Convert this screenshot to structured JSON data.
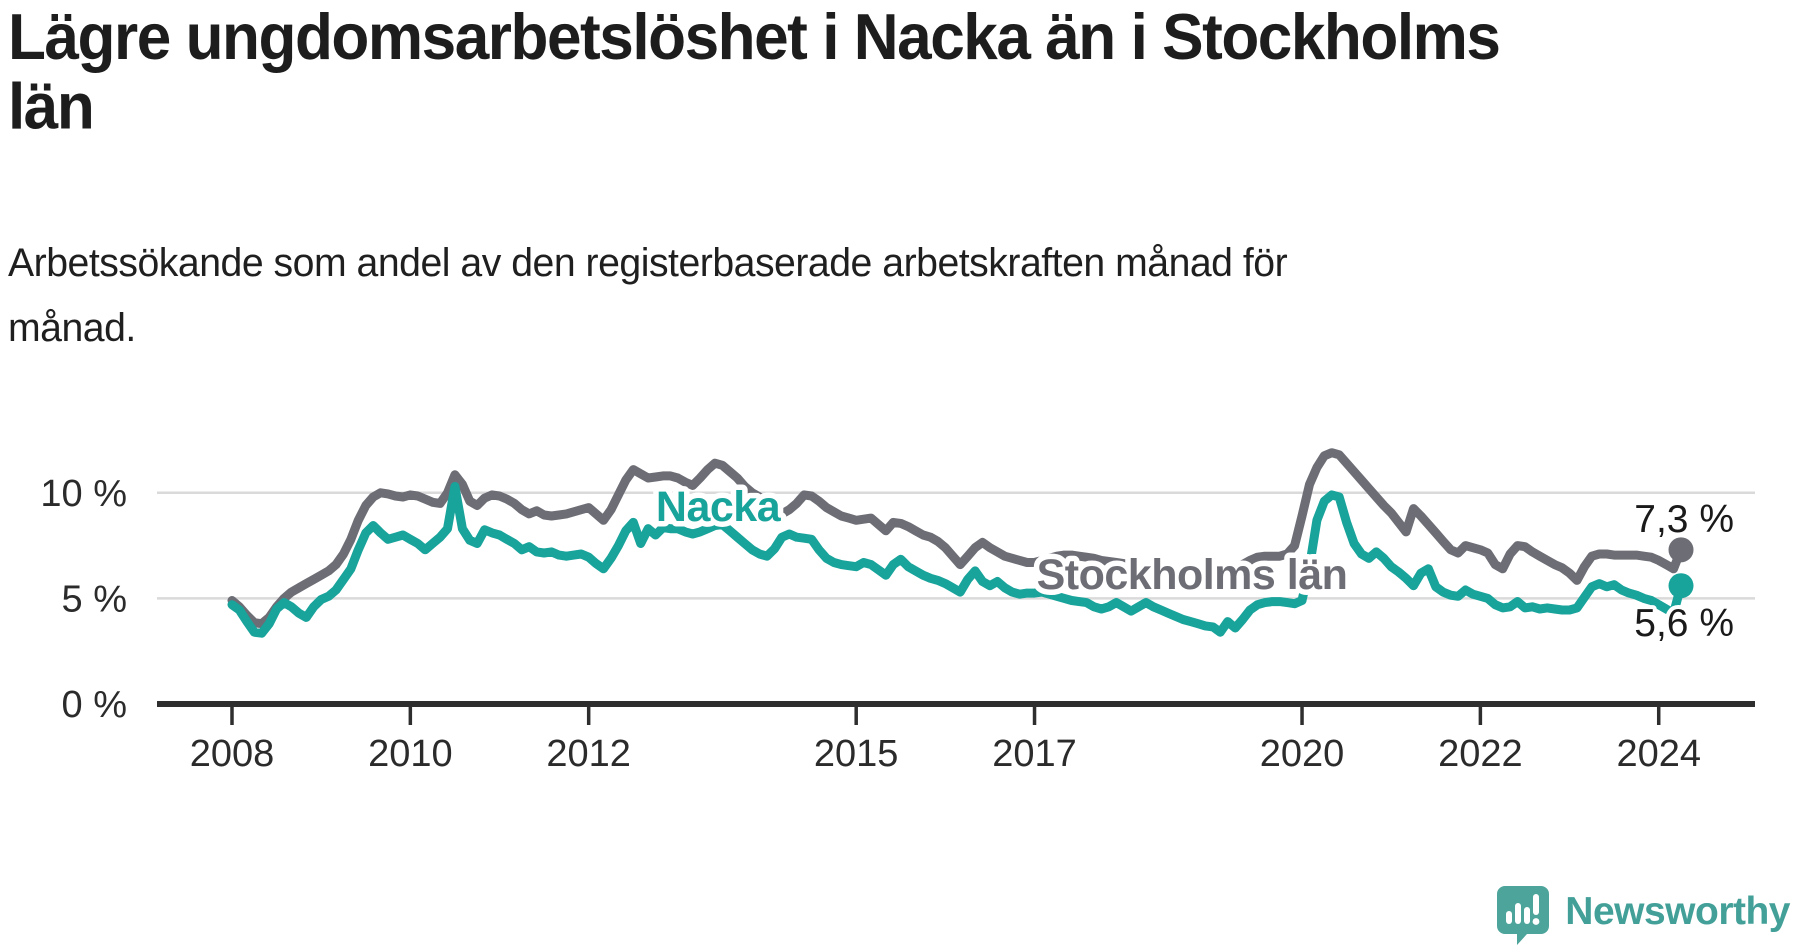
{
  "header": {
    "title_full": "Lägre ungdomsarbetslöshet i Nacka än i Stockholms län",
    "title_lines": [
      "Lägre ungdomsarbetslöshet i Nacka än i Stockholms",
      "län"
    ],
    "subtitle_full": "Arbetssökande som andel av den registerbaserade arbetskraften månad för månad.",
    "subtitle_lines": [
      "Arbetssökande som andel av den registerbaserade arbetskraften månad för",
      "månad."
    ]
  },
  "chart_data": {
    "type": "line",
    "title": "Lägre ungdomsarbetslöshet i Nacka än i Stockholms län",
    "subtitle": "Arbetssökande som andel av den registerbaserade arbetskraften månad för månad.",
    "unit": "%",
    "frequency": "monthly",
    "x_start": "2008-01",
    "x_end": "2024-04",
    "grid": "horizontal-only",
    "y_axis": {
      "range": [
        0,
        12.5
      ],
      "ticks": [
        {
          "value": 0,
          "label": "0 %"
        },
        {
          "value": 5,
          "label": "5 %"
        },
        {
          "value": 10,
          "label": "10 %"
        }
      ]
    },
    "x_axis": {
      "ticks": [
        {
          "year": 2008,
          "label": "2008"
        },
        {
          "year": 2010,
          "label": "2010"
        },
        {
          "year": 2012,
          "label": "2012"
        },
        {
          "year": 2015,
          "label": "2015"
        },
        {
          "year": 2017,
          "label": "2017"
        },
        {
          "year": 2020,
          "label": "2020"
        },
        {
          "year": 2022,
          "label": "2022"
        },
        {
          "year": 2024,
          "label": "2024"
        }
      ]
    },
    "series": [
      {
        "name": "Stockholms län",
        "color": "#6d6d76",
        "end_value": 7.3,
        "end_label": "7,3 %",
        "values": [
          4.9,
          4.6,
          4.2,
          3.85,
          3.8,
          4.1,
          4.6,
          5.0,
          5.3,
          5.5,
          5.7,
          5.9,
          6.1,
          6.3,
          6.6,
          7.1,
          7.8,
          8.7,
          9.4,
          9.8,
          10.0,
          9.95,
          9.85,
          9.8,
          9.9,
          9.85,
          9.7,
          9.55,
          9.5,
          10.0,
          10.85,
          10.4,
          9.6,
          9.4,
          9.75,
          9.9,
          9.85,
          9.7,
          9.5,
          9.2,
          9.0,
          9.15,
          8.95,
          8.9,
          8.95,
          9.0,
          9.1,
          9.2,
          9.3,
          9.0,
          8.7,
          9.2,
          9.9,
          10.6,
          11.1,
          10.9,
          10.7,
          10.75,
          10.8,
          10.8,
          10.7,
          10.5,
          10.35,
          10.7,
          11.1,
          11.4,
          11.3,
          11.0,
          10.7,
          10.3,
          10.0,
          9.8,
          9.5,
          9.2,
          9.0,
          9.2,
          9.5,
          9.9,
          9.85,
          9.6,
          9.3,
          9.1,
          8.9,
          8.8,
          8.7,
          8.75,
          8.8,
          8.5,
          8.2,
          8.6,
          8.55,
          8.4,
          8.2,
          8.0,
          7.9,
          7.7,
          7.4,
          7.0,
          6.6,
          7.0,
          7.4,
          7.65,
          7.4,
          7.2,
          7.0,
          6.9,
          6.8,
          6.7,
          6.7,
          6.8,
          6.9,
          7.0,
          7.05,
          7.05,
          7.0,
          6.95,
          6.9,
          6.8,
          6.75,
          6.7,
          6.65,
          6.6,
          6.55,
          6.5,
          6.45,
          6.4,
          6.4,
          6.35,
          6.3,
          6.3,
          6.25,
          6.25,
          6.2,
          6.25,
          6.3,
          6.45,
          6.6,
          6.8,
          6.95,
          7.0,
          7.0,
          7.0,
          7.1,
          7.5,
          8.9,
          10.4,
          11.2,
          11.75,
          11.9,
          11.8,
          11.4,
          11.0,
          10.6,
          10.2,
          9.8,
          9.4,
          9.05,
          8.6,
          8.15,
          9.25,
          8.9,
          8.5,
          8.1,
          7.7,
          7.3,
          7.15,
          7.5,
          7.4,
          7.3,
          7.15,
          6.6,
          6.4,
          7.1,
          7.5,
          7.45,
          7.2,
          7.0,
          6.8,
          6.6,
          6.45,
          6.2,
          5.85,
          6.5,
          7.0,
          7.1,
          7.1,
          7.05,
          7.05,
          7.05,
          7.05,
          7.0,
          6.95,
          6.8,
          6.6,
          6.4,
          7.3
        ]
      },
      {
        "name": "Nacka",
        "color": "#18a39b",
        "end_value": 5.6,
        "end_label": "5,6 %",
        "values": [
          4.7,
          4.45,
          3.9,
          3.4,
          3.35,
          3.8,
          4.5,
          4.8,
          4.6,
          4.3,
          4.1,
          4.6,
          4.95,
          5.1,
          5.4,
          5.9,
          6.4,
          7.3,
          8.1,
          8.45,
          8.1,
          7.8,
          7.9,
          8.0,
          7.8,
          7.6,
          7.3,
          7.6,
          7.9,
          8.3,
          10.3,
          8.3,
          7.75,
          7.6,
          8.25,
          8.1,
          8.0,
          7.8,
          7.6,
          7.3,
          7.45,
          7.2,
          7.15,
          7.2,
          7.05,
          7.0,
          7.05,
          7.1,
          6.95,
          6.65,
          6.4,
          6.9,
          7.5,
          8.2,
          8.6,
          7.6,
          8.3,
          8.0,
          8.35,
          8.3,
          8.3,
          8.15,
          8.05,
          8.15,
          8.3,
          8.45,
          8.5,
          8.2,
          7.9,
          7.6,
          7.3,
          7.1,
          7.0,
          7.35,
          7.9,
          8.05,
          7.9,
          7.85,
          7.8,
          7.3,
          6.9,
          6.7,
          6.6,
          6.55,
          6.5,
          6.7,
          6.6,
          6.35,
          6.1,
          6.6,
          6.85,
          6.5,
          6.3,
          6.1,
          5.95,
          5.85,
          5.7,
          5.5,
          5.3,
          5.9,
          6.3,
          5.8,
          5.6,
          5.8,
          5.5,
          5.3,
          5.2,
          5.25,
          5.25,
          5.3,
          5.2,
          5.1,
          5.0,
          4.9,
          4.85,
          4.8,
          4.6,
          4.5,
          4.6,
          4.8,
          4.6,
          4.4,
          4.6,
          4.8,
          4.6,
          4.45,
          4.3,
          4.15,
          4.0,
          3.9,
          3.8,
          3.7,
          3.65,
          3.4,
          3.9,
          3.6,
          4.0,
          4.45,
          4.7,
          4.8,
          4.85,
          4.85,
          4.8,
          4.75,
          4.9,
          6.5,
          8.7,
          9.6,
          9.9,
          9.8,
          8.6,
          7.6,
          7.1,
          6.9,
          7.2,
          6.9,
          6.5,
          6.25,
          5.95,
          5.6,
          6.2,
          6.4,
          5.55,
          5.3,
          5.15,
          5.1,
          5.4,
          5.2,
          5.1,
          5.0,
          4.7,
          4.55,
          4.6,
          4.85,
          4.55,
          4.6,
          4.5,
          4.55,
          4.5,
          4.45,
          4.45,
          4.55,
          5.05,
          5.55,
          5.7,
          5.55,
          5.65,
          5.4,
          5.25,
          5.15,
          5.0,
          4.9,
          4.7,
          4.5,
          4.3,
          5.6
        ]
      }
    ],
    "legend_position": "inline-labels-on-chart",
    "colors": {
      "grid": "#dadada",
      "axis": "#2e2e2e",
      "text": "#2b2b2b",
      "annotation": "#1a1a1a"
    }
  },
  "branding": {
    "logo_text": "Newsworthy",
    "logo_icon": "speech-bubble-bar-chart-exclamation",
    "color": "#43a099",
    "icon_color": "#4da49b"
  }
}
